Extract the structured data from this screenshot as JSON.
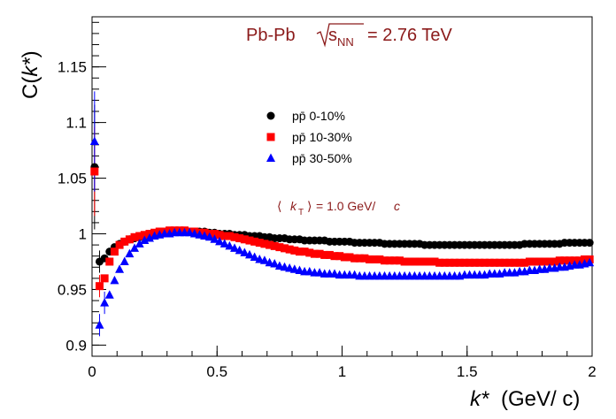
{
  "chart_data": {
    "type": "scatter",
    "title": "Pb-Pb",
    "energy_label": {
      "prefix": "s",
      "subscript": "NN",
      "value": "= 2.76 TeV"
    },
    "annotation": {
      "open": "⟨",
      "var": "k",
      "sub": "T",
      "close": "⟩",
      "text": "= 1.0 GeV/",
      "unit": "c"
    },
    "xlabel": {
      "var": "k*",
      "units": "(GeV/ c)"
    },
    "ylabel": {
      "prefix": "C(",
      "var": "k*",
      "suffix": ")"
    },
    "xlim": [
      0,
      2
    ],
    "ylim": [
      0.89,
      1.195
    ],
    "x_ticks": [
      0,
      0.5,
      1,
      1.5,
      2
    ],
    "x_tick_labels": [
      "0",
      "0.5",
      "1",
      "1.5",
      "2"
    ],
    "y_ticks": [
      0.9,
      0.95,
      1,
      1.05,
      1.1,
      1.15
    ],
    "y_tick_labels": [
      "0.9",
      "0.95",
      "1",
      "1.05",
      "1.1",
      "1.15"
    ],
    "legend_position": "center",
    "series": [
      {
        "name": "pp̄ 0-10%",
        "marker": "circle",
        "color": "#000000",
        "x": [
          0.01,
          0.03,
          0.05,
          0.07,
          0.09,
          0.11,
          0.13,
          0.15,
          0.17,
          0.19,
          0.21,
          0.23,
          0.25,
          0.27,
          0.29,
          0.31,
          0.33,
          0.35,
          0.37,
          0.39,
          0.41,
          0.43,
          0.45,
          0.47,
          0.49,
          0.51,
          0.53,
          0.55,
          0.57,
          0.59,
          0.61,
          0.63,
          0.65,
          0.67,
          0.69,
          0.71,
          0.73,
          0.75,
          0.77,
          0.79,
          0.81,
          0.83,
          0.85,
          0.87,
          0.89,
          0.91,
          0.93,
          0.95,
          0.97,
          0.99,
          1.01,
          1.03,
          1.05,
          1.07,
          1.09,
          1.11,
          1.13,
          1.15,
          1.17,
          1.19,
          1.21,
          1.23,
          1.25,
          1.27,
          1.29,
          1.31,
          1.33,
          1.35,
          1.37,
          1.39,
          1.41,
          1.43,
          1.45,
          1.47,
          1.49,
          1.51,
          1.53,
          1.55,
          1.57,
          1.59,
          1.61,
          1.63,
          1.65,
          1.67,
          1.69,
          1.71,
          1.73,
          1.75,
          1.77,
          1.79,
          1.81,
          1.83,
          1.85,
          1.87,
          1.89,
          1.91,
          1.93,
          1.95,
          1.97,
          1.99
        ],
        "y": [
          1.06,
          0.975,
          0.978,
          0.984,
          0.988,
          0.991,
          0.993,
          0.995,
          0.996,
          0.997,
          0.998,
          0.999,
          1.0,
          1.001,
          1.001,
          1.002,
          1.002,
          1.002,
          1.002,
          1.002,
          1.002,
          1.002,
          1.002,
          1.001,
          1.001,
          1.0,
          1.0,
          1.0,
          0.999,
          0.999,
          0.999,
          0.998,
          0.998,
          0.998,
          0.997,
          0.997,
          0.996,
          0.996,
          0.996,
          0.995,
          0.995,
          0.995,
          0.994,
          0.994,
          0.994,
          0.994,
          0.994,
          0.993,
          0.993,
          0.993,
          0.993,
          0.993,
          0.992,
          0.992,
          0.992,
          0.992,
          0.992,
          0.992,
          0.991,
          0.991,
          0.991,
          0.991,
          0.991,
          0.991,
          0.991,
          0.991,
          0.99,
          0.99,
          0.99,
          0.99,
          0.99,
          0.99,
          0.99,
          0.99,
          0.99,
          0.99,
          0.99,
          0.99,
          0.99,
          0.99,
          0.99,
          0.99,
          0.99,
          0.99,
          0.99,
          0.99,
          0.991,
          0.991,
          0.991,
          0.991,
          0.991,
          0.991,
          0.991,
          0.991,
          0.992,
          0.992,
          0.992,
          0.992,
          0.992,
          0.992
        ],
        "yerr_low": [
          0.05
        ]
      },
      {
        "name": "pp̄ 10-30%",
        "marker": "square",
        "color": "#ff0000",
        "x": [
          0.01,
          0.03,
          0.05,
          0.07,
          0.09,
          0.11,
          0.13,
          0.15,
          0.17,
          0.19,
          0.21,
          0.23,
          0.25,
          0.27,
          0.29,
          0.31,
          0.33,
          0.35,
          0.37,
          0.39,
          0.41,
          0.43,
          0.45,
          0.47,
          0.49,
          0.51,
          0.53,
          0.55,
          0.57,
          0.59,
          0.61,
          0.63,
          0.65,
          0.67,
          0.69,
          0.71,
          0.73,
          0.75,
          0.77,
          0.79,
          0.81,
          0.83,
          0.85,
          0.87,
          0.89,
          0.91,
          0.93,
          0.95,
          0.97,
          0.99,
          1.01,
          1.03,
          1.05,
          1.07,
          1.09,
          1.11,
          1.13,
          1.15,
          1.17,
          1.19,
          1.21,
          1.23,
          1.25,
          1.27,
          1.29,
          1.31,
          1.33,
          1.35,
          1.37,
          1.39,
          1.41,
          1.43,
          1.45,
          1.47,
          1.49,
          1.51,
          1.53,
          1.55,
          1.57,
          1.59,
          1.61,
          1.63,
          1.65,
          1.67,
          1.69,
          1.71,
          1.73,
          1.75,
          1.77,
          1.79,
          1.81,
          1.83,
          1.85,
          1.87,
          1.89,
          1.91,
          1.93,
          1.95,
          1.97,
          1.99
        ],
        "y": [
          1.056,
          0.953,
          0.96,
          0.975,
          0.984,
          0.99,
          0.993,
          0.995,
          0.997,
          0.998,
          0.999,
          1.0,
          1.001,
          1.002,
          1.002,
          1.003,
          1.003,
          1.003,
          1.003,
          1.002,
          1.002,
          1.001,
          1.001,
          1.0,
          1.0,
          0.999,
          0.998,
          0.998,
          0.997,
          0.996,
          0.995,
          0.994,
          0.993,
          0.992,
          0.991,
          0.99,
          0.989,
          0.988,
          0.987,
          0.986,
          0.985,
          0.984,
          0.984,
          0.983,
          0.982,
          0.982,
          0.981,
          0.981,
          0.98,
          0.98,
          0.979,
          0.979,
          0.978,
          0.978,
          0.978,
          0.977,
          0.977,
          0.977,
          0.976,
          0.976,
          0.976,
          0.976,
          0.975,
          0.975,
          0.975,
          0.975,
          0.975,
          0.975,
          0.975,
          0.974,
          0.974,
          0.974,
          0.974,
          0.974,
          0.974,
          0.974,
          0.974,
          0.974,
          0.974,
          0.974,
          0.974,
          0.974,
          0.974,
          0.974,
          0.974,
          0.974,
          0.974,
          0.975,
          0.975,
          0.975,
          0.975,
          0.975,
          0.975,
          0.976,
          0.976,
          0.976,
          0.976,
          0.976,
          0.977,
          0.977
        ]
      },
      {
        "name": "pp̄ 30-50%",
        "marker": "triangle",
        "color": "#0000ff",
        "x": [
          0.01,
          0.03,
          0.05,
          0.07,
          0.09,
          0.11,
          0.13,
          0.15,
          0.17,
          0.19,
          0.21,
          0.23,
          0.25,
          0.27,
          0.29,
          0.31,
          0.33,
          0.35,
          0.37,
          0.39,
          0.41,
          0.43,
          0.45,
          0.47,
          0.49,
          0.51,
          0.53,
          0.55,
          0.57,
          0.59,
          0.61,
          0.63,
          0.65,
          0.67,
          0.69,
          0.71,
          0.73,
          0.75,
          0.77,
          0.79,
          0.81,
          0.83,
          0.85,
          0.87,
          0.89,
          0.91,
          0.93,
          0.95,
          0.97,
          0.99,
          1.01,
          1.03,
          1.05,
          1.07,
          1.09,
          1.11,
          1.13,
          1.15,
          1.17,
          1.19,
          1.21,
          1.23,
          1.25,
          1.27,
          1.29,
          1.31,
          1.33,
          1.35,
          1.37,
          1.39,
          1.41,
          1.43,
          1.45,
          1.47,
          1.49,
          1.51,
          1.53,
          1.55,
          1.57,
          1.59,
          1.61,
          1.63,
          1.65,
          1.67,
          1.69,
          1.71,
          1.73,
          1.75,
          1.77,
          1.79,
          1.81,
          1.83,
          1.85,
          1.87,
          1.89,
          1.91,
          1.93,
          1.95,
          1.97,
          1.99
        ],
        "y": [
          1.083,
          0.918,
          0.938,
          0.945,
          0.958,
          0.968,
          0.975,
          0.982,
          0.987,
          0.991,
          0.994,
          0.996,
          0.998,
          0.999,
          1.0,
          1.0,
          1.001,
          1.001,
          1.001,
          1.001,
          1.0,
          0.999,
          0.998,
          0.997,
          0.995,
          0.993,
          0.991,
          0.989,
          0.987,
          0.985,
          0.983,
          0.981,
          0.979,
          0.977,
          0.976,
          0.974,
          0.973,
          0.971,
          0.97,
          0.969,
          0.968,
          0.967,
          0.966,
          0.966,
          0.965,
          0.965,
          0.964,
          0.964,
          0.964,
          0.963,
          0.963,
          0.963,
          0.963,
          0.962,
          0.962,
          0.962,
          0.962,
          0.962,
          0.962,
          0.962,
          0.962,
          0.962,
          0.962,
          0.962,
          0.962,
          0.962,
          0.962,
          0.962,
          0.962,
          0.962,
          0.962,
          0.962,
          0.962,
          0.962,
          0.963,
          0.963,
          0.963,
          0.963,
          0.963,
          0.964,
          0.964,
          0.964,
          0.965,
          0.965,
          0.965,
          0.966,
          0.966,
          0.967,
          0.967,
          0.968,
          0.968,
          0.969,
          0.969,
          0.97,
          0.97,
          0.971,
          0.972,
          0.972,
          0.973,
          0.974
        ]
      }
    ]
  }
}
